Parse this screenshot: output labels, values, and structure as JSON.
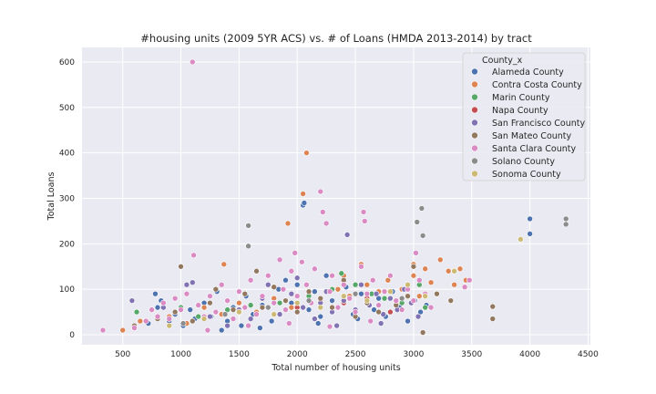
{
  "chart_data": {
    "type": "scatter",
    "title": "#housing units (2009 5YR ACS) vs. # of Loans (HMDA 2013-2014) by tract",
    "xlabel": "Total number of housing units",
    "ylabel": "Total Loans",
    "xlim": [
      150,
      4520
    ],
    "ylim": [
      -22,
      632
    ],
    "xticks": [
      500,
      1000,
      1500,
      2000,
      2500,
      3000,
      3500,
      4000,
      4500
    ],
    "yticks": [
      0,
      100,
      200,
      300,
      400,
      500,
      600
    ],
    "grid": true,
    "legend_placement": "top-right",
    "legend_title": "County_x",
    "series": [
      {
        "name": "Alameda County",
        "color": "#4c72b0",
        "points": [
          [
            720,
            25
          ],
          [
            780,
            90
          ],
          [
            800,
            60
          ],
          [
            830,
            75
          ],
          [
            900,
            30
          ],
          [
            950,
            45
          ],
          [
            1020,
            20
          ],
          [
            1080,
            55
          ],
          [
            1120,
            35
          ],
          [
            1200,
            70
          ],
          [
            1260,
            40
          ],
          [
            1310,
            95
          ],
          [
            1400,
            30
          ],
          [
            1450,
            60
          ],
          [
            1520,
            20
          ],
          [
            1560,
            85
          ],
          [
            1620,
            45
          ],
          [
            1700,
            65
          ],
          [
            1780,
            30
          ],
          [
            1840,
            100
          ],
          [
            1900,
            120
          ],
          [
            1950,
            70
          ],
          [
            2000,
            110
          ],
          [
            2050,
            285
          ],
          [
            2060,
            290
          ],
          [
            2100,
            55
          ],
          [
            2150,
            95
          ],
          [
            2200,
            40
          ],
          [
            2250,
            130
          ],
          [
            2300,
            75
          ],
          [
            2350,
            60
          ],
          [
            2420,
            105
          ],
          [
            2480,
            45
          ],
          [
            2550,
            90
          ],
          [
            2600,
            70
          ],
          [
            2660,
            55
          ],
          [
            2700,
            80
          ],
          [
            2760,
            40
          ],
          [
            2820,
            95
          ],
          [
            2880,
            60
          ],
          [
            2950,
            30
          ],
          [
            3010,
            75
          ],
          [
            3060,
            50
          ],
          [
            3110,
            65
          ],
          [
            1350,
            10
          ],
          [
            1680,
            15
          ],
          [
            2180,
            25
          ],
          [
            2520,
            35
          ],
          [
            4000,
            255
          ],
          [
            4000,
            222
          ]
        ]
      },
      {
        "name": "Contra Costa County",
        "color": "#dd8452",
        "points": [
          [
            500,
            10
          ],
          [
            650,
            30
          ],
          [
            900,
            40
          ],
          [
            1050,
            25
          ],
          [
            1200,
            60
          ],
          [
            1350,
            45
          ],
          [
            1370,
            155
          ],
          [
            1500,
            70
          ],
          [
            1650,
            50
          ],
          [
            1800,
            80
          ],
          [
            1920,
            245
          ],
          [
            1950,
            60
          ],
          [
            2050,
            310
          ],
          [
            2080,
            400
          ],
          [
            2100,
            90
          ],
          [
            2200,
            75
          ],
          [
            2350,
            100
          ],
          [
            2400,
            130
          ],
          [
            2450,
            85
          ],
          [
            2550,
            155
          ],
          [
            2600,
            110
          ],
          [
            2700,
            95
          ],
          [
            2780,
            120
          ],
          [
            2850,
            70
          ],
          [
            2900,
            100
          ],
          [
            3000,
            130
          ],
          [
            3050,
            85
          ],
          [
            3100,
            145
          ],
          [
            3150,
            115
          ],
          [
            3200,
            90
          ],
          [
            3230,
            165
          ],
          [
            3300,
            140
          ],
          [
            3350,
            110
          ],
          [
            3400,
            145
          ],
          [
            3450,
            120
          ],
          [
            3000,
            155
          ]
        ]
      },
      {
        "name": "Marin County",
        "color": "#55a868",
        "points": [
          [
            620,
            50
          ],
          [
            1000,
            60
          ],
          [
            1150,
            40
          ],
          [
            1400,
            55
          ],
          [
            1600,
            65
          ],
          [
            1850,
            70
          ],
          [
            2100,
            85
          ],
          [
            2300,
            100
          ],
          [
            2380,
            135
          ],
          [
            2500,
            110
          ],
          [
            2640,
            90
          ],
          [
            2750,
            80
          ],
          [
            2900,
            70
          ],
          [
            3050,
            110
          ],
          [
            3100,
            60
          ]
        ]
      },
      {
        "name": "Napa County",
        "color": "#c44e52",
        "points": [
          [
            1500,
            50
          ],
          [
            2000,
            60
          ],
          [
            2400,
            70
          ],
          [
            2600,
            80
          ],
          [
            2800,
            50
          ]
        ]
      },
      {
        "name": "San Francisco County",
        "color": "#8172b3",
        "points": [
          [
            580,
            75
          ],
          [
            850,
            60
          ],
          [
            1050,
            110
          ],
          [
            1100,
            115
          ],
          [
            1250,
            40
          ],
          [
            1400,
            20
          ],
          [
            1500,
            55
          ],
          [
            1600,
            35
          ],
          [
            1700,
            80
          ],
          [
            1750,
            110
          ],
          [
            1850,
            45
          ],
          [
            1950,
            90
          ],
          [
            2000,
            125
          ],
          [
            2050,
            60
          ],
          [
            2150,
            35
          ],
          [
            2200,
            70
          ],
          [
            2250,
            95
          ],
          [
            2300,
            50
          ],
          [
            2400,
            75
          ],
          [
            2430,
            220
          ],
          [
            2500,
            55
          ],
          [
            2550,
            110
          ],
          [
            2620,
            65
          ],
          [
            2680,
            90
          ],
          [
            2740,
            45
          ],
          [
            2800,
            80
          ],
          [
            2860,
            55
          ],
          [
            2920,
            100
          ],
          [
            2980,
            70
          ],
          [
            3040,
            40
          ],
          [
            2340,
            20
          ],
          [
            2720,
            25
          ]
        ]
      },
      {
        "name": "San Mateo County",
        "color": "#937860",
        "points": [
          [
            600,
            20
          ],
          [
            800,
            35
          ],
          [
            950,
            50
          ],
          [
            1000,
            150
          ],
          [
            1100,
            30
          ],
          [
            1250,
            70
          ],
          [
            1300,
            100
          ],
          [
            1450,
            55
          ],
          [
            1550,
            90
          ],
          [
            1650,
            140
          ],
          [
            1700,
            60
          ],
          [
            1800,
            105
          ],
          [
            1900,
            75
          ],
          [
            2000,
            50
          ],
          [
            2100,
            95
          ],
          [
            2200,
            80
          ],
          [
            2300,
            60
          ],
          [
            2400,
            120
          ],
          [
            2500,
            40
          ],
          [
            2600,
            70
          ],
          [
            2700,
            50
          ],
          [
            2850,
            65
          ],
          [
            2950,
            85
          ],
          [
            3000,
            150
          ],
          [
            3080,
            5
          ],
          [
            3200,
            90
          ],
          [
            3320,
            75
          ],
          [
            3680,
            35
          ],
          [
            3680,
            62
          ]
        ]
      },
      {
        "name": "Santa Clara County",
        "color": "#da8bc3",
        "points": [
          [
            330,
            10
          ],
          [
            600,
            15
          ],
          [
            700,
            30
          ],
          [
            750,
            55
          ],
          [
            800,
            40
          ],
          [
            850,
            70
          ],
          [
            900,
            35
          ],
          [
            950,
            80
          ],
          [
            1000,
            55
          ],
          [
            1050,
            90
          ],
          [
            1100,
            600
          ],
          [
            1110,
            175
          ],
          [
            1150,
            65
          ],
          [
            1200,
            40
          ],
          [
            1250,
            85
          ],
          [
            1300,
            50
          ],
          [
            1350,
            110
          ],
          [
            1400,
            75
          ],
          [
            1450,
            35
          ],
          [
            1500,
            95
          ],
          [
            1550,
            60
          ],
          [
            1600,
            120
          ],
          [
            1650,
            45
          ],
          [
            1700,
            85
          ],
          [
            1750,
            130
          ],
          [
            1800,
            70
          ],
          [
            1850,
            165
          ],
          [
            1880,
            100
          ],
          [
            1900,
            55
          ],
          [
            1950,
            140
          ],
          [
            1980,
            180
          ],
          [
            2000,
            85
          ],
          [
            2040,
            160
          ],
          [
            2080,
            110
          ],
          [
            2120,
            70
          ],
          [
            2150,
            145
          ],
          [
            2200,
            315
          ],
          [
            2220,
            270
          ],
          [
            2250,
            245
          ],
          [
            2280,
            95
          ],
          [
            2300,
            130
          ],
          [
            2350,
            60
          ],
          [
            2400,
            110
          ],
          [
            2450,
            80
          ],
          [
            2500,
            50
          ],
          [
            2550,
            150
          ],
          [
            2570,
            270
          ],
          [
            2580,
            250
          ],
          [
            2600,
            90
          ],
          [
            2650,
            120
          ],
          [
            2700,
            65
          ],
          [
            2750,
            95
          ],
          [
            2800,
            130
          ],
          [
            2850,
            75
          ],
          [
            2900,
            55
          ],
          [
            2950,
            100
          ],
          [
            3000,
            75
          ],
          [
            3020,
            180
          ],
          [
            3050,
            120
          ],
          [
            3100,
            90
          ],
          [
            3150,
            60
          ],
          [
            3480,
            120
          ],
          [
            3440,
            105
          ],
          [
            1230,
            10
          ],
          [
            1580,
            20
          ],
          [
            1930,
            25
          ],
          [
            2280,
            18
          ],
          [
            2630,
            30
          ]
        ]
      },
      {
        "name": "Solano County",
        "color": "#8c8c8c",
        "points": [
          [
            1580,
            240
          ],
          [
            1580,
            195
          ],
          [
            1020,
            25
          ],
          [
            1380,
            45
          ],
          [
            1750,
            60
          ],
          [
            2100,
            75
          ],
          [
            2500,
            90
          ],
          [
            2900,
            80
          ],
          [
            3030,
            248
          ],
          [
            3070,
            278
          ],
          [
            3080,
            218
          ],
          [
            4310,
            255
          ],
          [
            4310,
            243
          ]
        ]
      },
      {
        "name": "Sonoma County",
        "color": "#ccb974",
        "points": [
          [
            900,
            20
          ],
          [
            1200,
            35
          ],
          [
            1500,
            50
          ],
          [
            1800,
            45
          ],
          [
            2000,
            70
          ],
          [
            2200,
            60
          ],
          [
            2400,
            85
          ],
          [
            2600,
            75
          ],
          [
            2800,
            95
          ],
          [
            2950,
            110
          ],
          [
            3100,
            85
          ],
          [
            3350,
            140
          ],
          [
            3920,
            210
          ]
        ]
      }
    ]
  }
}
